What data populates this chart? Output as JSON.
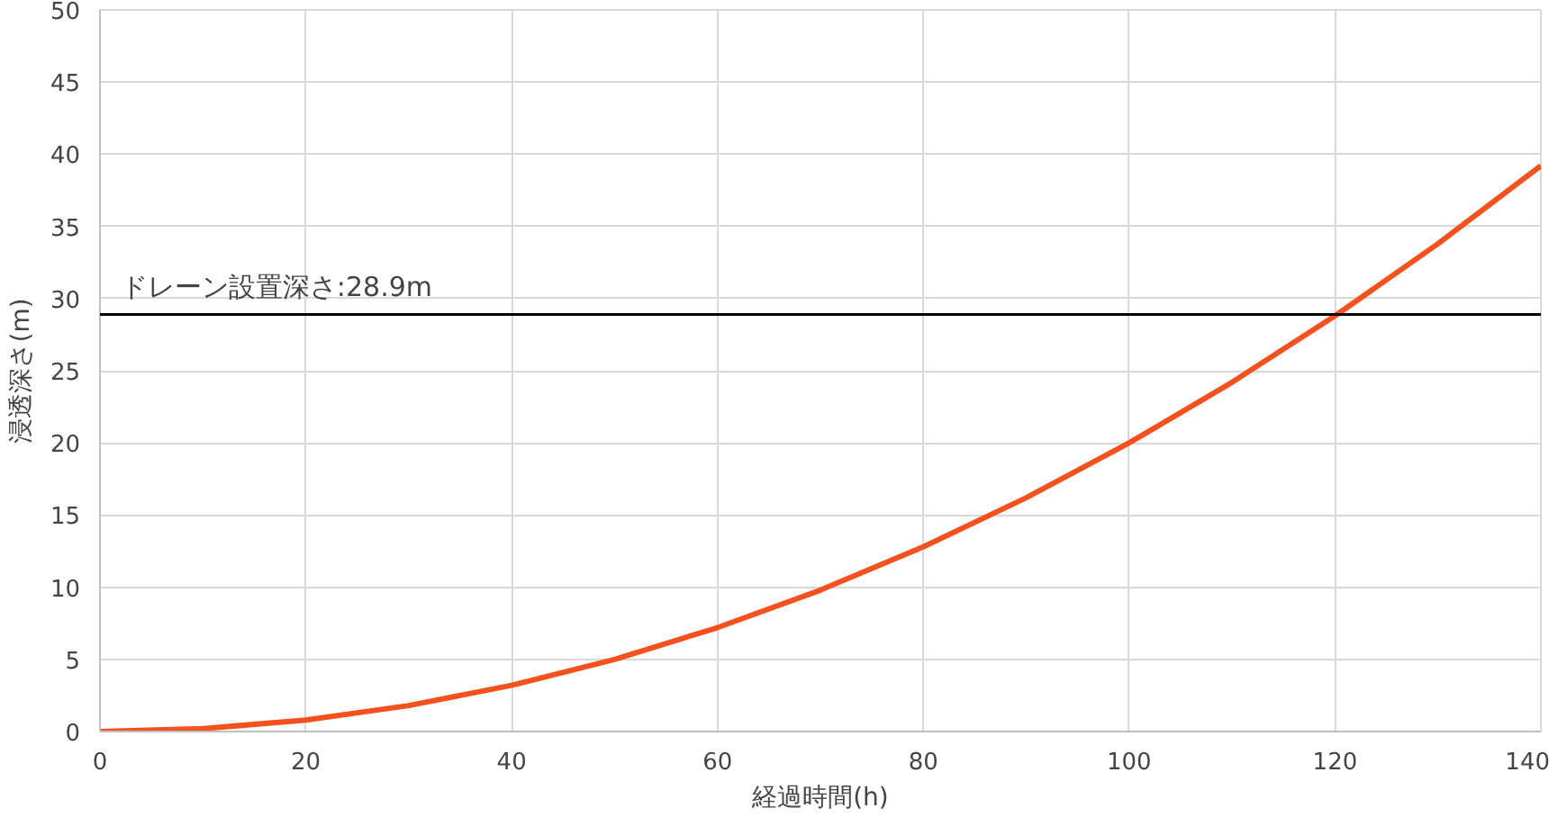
{
  "chart_data": {
    "type": "line",
    "xlabel": "経過時間(h)",
    "ylabel": "浸透深さ(m)",
    "x": [
      0,
      10,
      20,
      30,
      40,
      50,
      60,
      70,
      80,
      90,
      100,
      110,
      120,
      130,
      140
    ],
    "series": [
      {
        "color": "#f4511e",
        "values": [
          0,
          0.2,
          0.8,
          1.8,
          3.2,
          5.0,
          7.2,
          9.8,
          12.8,
          16.2,
          20.0,
          24.2,
          28.8,
          33.8,
          39.2
        ]
      }
    ],
    "xlim": [
      0,
      140
    ],
    "ylim": [
      0,
      50
    ],
    "xticks": [
      0,
      20,
      40,
      60,
      80,
      100,
      120,
      140
    ],
    "yticks": [
      0,
      5,
      10,
      15,
      20,
      25,
      30,
      35,
      40,
      45,
      50
    ],
    "ref_lines": [
      {
        "axis": "y",
        "value": 28.9,
        "label": "ドレーン設置深さ:28.9m",
        "color": "#000000"
      }
    ],
    "grid": true,
    "marker": "none",
    "line_style": "solid"
  }
}
